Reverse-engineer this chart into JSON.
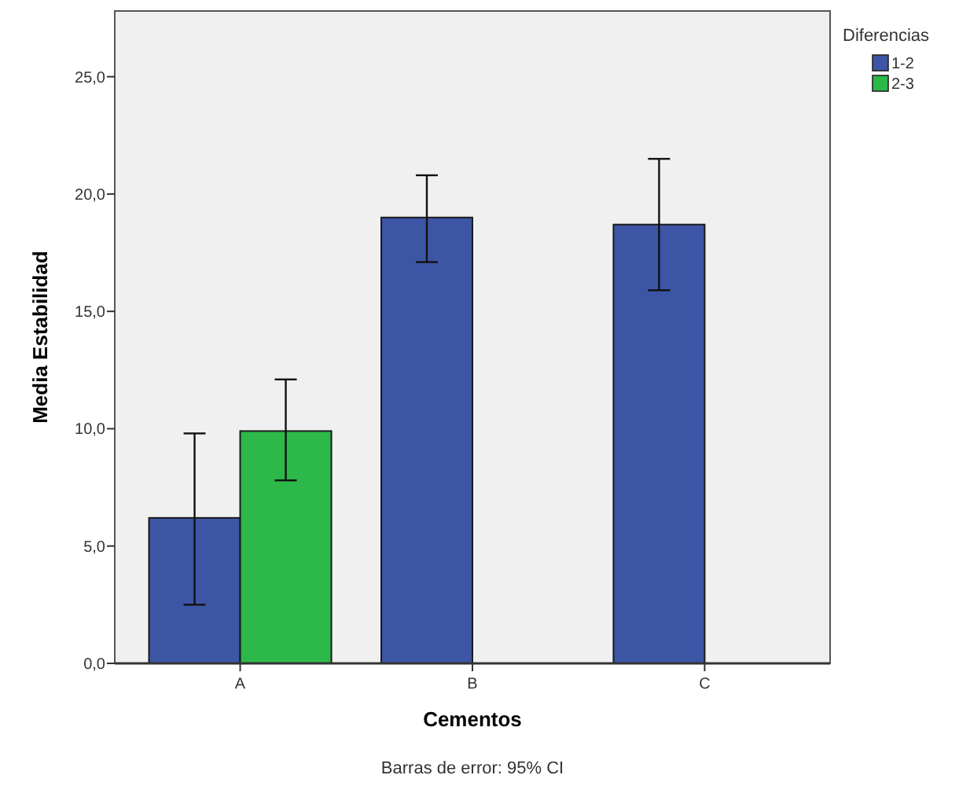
{
  "chart_data": {
    "type": "bar",
    "xlabel": "Cementos",
    "ylabel": "Media Estabilidad",
    "legend_title": "Diferencias",
    "categories": [
      "A",
      "B",
      "C"
    ],
    "series": [
      {
        "name": "1-2",
        "color": "#3d55a5",
        "values": [
          6.2,
          19.0,
          18.7
        ],
        "errors": [
          [
            2.5,
            9.8
          ],
          [
            17.1,
            20.8
          ],
          [
            15.9,
            21.5
          ]
        ]
      },
      {
        "name": "2-3",
        "color": "#2db84a",
        "values": [
          9.9,
          null,
          null
        ],
        "errors": [
          [
            7.8,
            12.1
          ],
          null,
          null
        ]
      }
    ],
    "ylim": [
      0,
      27.8
    ],
    "yticks": [
      {
        "value": 0,
        "label": "0,0"
      },
      {
        "value": 5,
        "label": "5,0"
      },
      {
        "value": 10,
        "label": "10,0"
      },
      {
        "value": 15,
        "label": "15,0"
      },
      {
        "value": 20,
        "label": "20,0"
      },
      {
        "value": 25,
        "label": "25,0"
      }
    ],
    "legend": "top right",
    "annotations": [
      "Barras de error: 95% CI"
    ]
  }
}
